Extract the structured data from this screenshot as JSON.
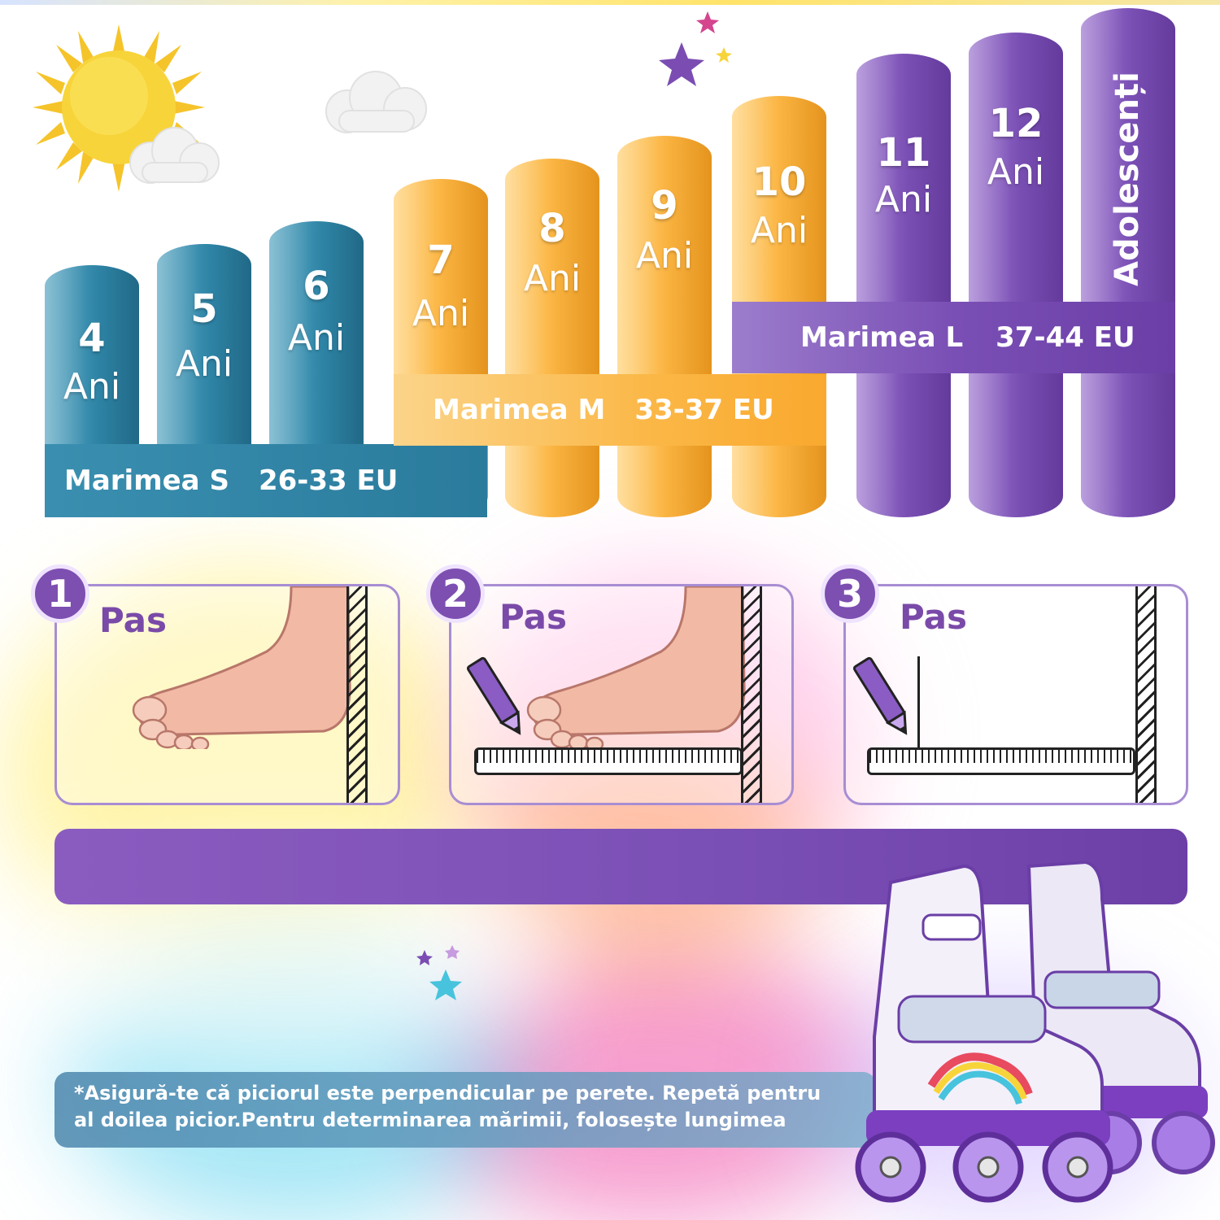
{
  "columns": [
    {
      "num": "4",
      "label": "Ani"
    },
    {
      "num": "5",
      "label": "Ani"
    },
    {
      "num": "6",
      "label": "Ani"
    },
    {
      "num": "7",
      "label": "Ani"
    },
    {
      "num": "8",
      "label": "Ani"
    },
    {
      "num": "9",
      "label": "Ani"
    },
    {
      "num": "10",
      "label": "Ani"
    },
    {
      "num": "11",
      "label": "Ani"
    },
    {
      "num": "12",
      "label": "Ani"
    },
    {
      "num": "",
      "label": "Adolescenți"
    }
  ],
  "sizes": {
    "s": {
      "name": "Marimea S",
      "range": "26-33 EU"
    },
    "m": {
      "name": "Marimea M",
      "range": "33-37 EU"
    },
    "l": {
      "name": "Marimea L",
      "range": "37-44 EU"
    }
  },
  "steps": [
    {
      "num": "1",
      "label": "Pas"
    },
    {
      "num": "2",
      "label": "Pas"
    },
    {
      "num": "3",
      "label": "Pas"
    }
  ],
  "note": {
    "line1": "*Asigură-te că piciorul este perpendicular pe perete. Repetă pentru",
    "line2": "al doilea picior.Pentru determinarea mărimii, folosește lungimea"
  },
  "colors": {
    "teal": "#2f86a8",
    "orange": "#fbb33f",
    "purple": "#7a4fb5"
  }
}
